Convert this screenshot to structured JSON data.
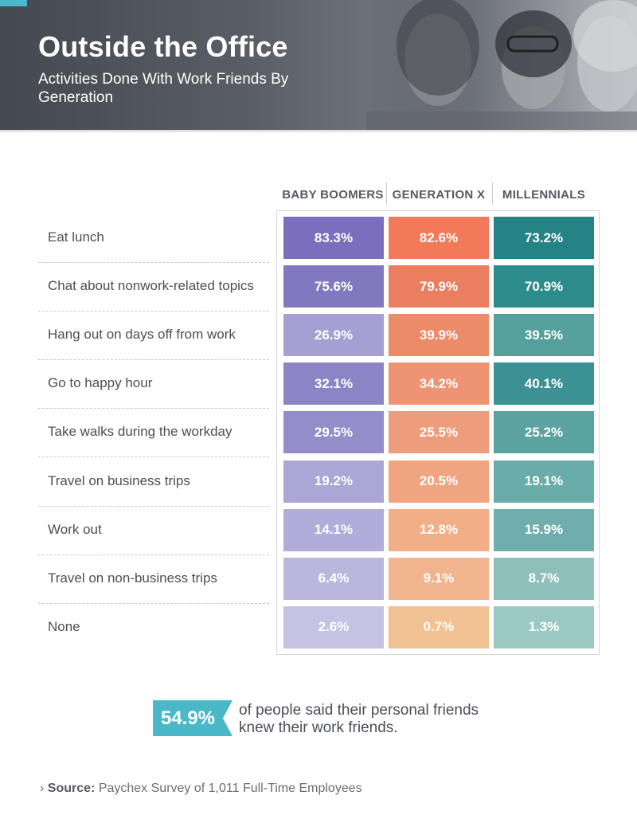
{
  "header": {
    "title": "Outside the Office",
    "subtitle": "Activities Done With Work Friends By Generation"
  },
  "chart_data": {
    "type": "table",
    "columns": [
      "BABY BOOMERS",
      "GENERATION X",
      "MILLENNIALS"
    ],
    "rows": [
      {
        "label": "Eat lunch",
        "values": [
          "83.3%",
          "82.6%",
          "73.2%"
        ]
      },
      {
        "label": "Chat about nonwork-related topics",
        "values": [
          "75.6%",
          "79.9%",
          "70.9%"
        ]
      },
      {
        "label": "Hang out on days off from work",
        "values": [
          "26.9%",
          "39.9%",
          "39.5%"
        ]
      },
      {
        "label": "Go to happy hour",
        "values": [
          "32.1%",
          "34.2%",
          "40.1%"
        ]
      },
      {
        "label": "Take walks during the workday",
        "values": [
          "29.5%",
          "25.5%",
          "25.2%"
        ]
      },
      {
        "label": "Travel on business trips",
        "values": [
          "19.2%",
          "20.5%",
          "19.1%"
        ]
      },
      {
        "label": "Work out",
        "values": [
          "14.1%",
          "12.8%",
          "15.9%"
        ]
      },
      {
        "label": "Travel on non-business trips",
        "values": [
          "6.4%",
          "9.1%",
          "8.7%"
        ]
      },
      {
        "label": "None",
        "values": [
          "2.6%",
          "0.7%",
          "1.3%"
        ]
      }
    ],
    "cell_colors": [
      [
        "#7b6fbd",
        "#f27a5b",
        "#268385"
      ],
      [
        "#8278c0",
        "#ea7e5e",
        "#2d8b8c"
      ],
      [
        "#a59fd3",
        "#ec8b68",
        "#559f9c"
      ],
      [
        "#8d84c5",
        "#ef9472",
        "#3b9193"
      ],
      [
        "#948dca",
        "#ee9d7c",
        "#5aa3a0"
      ],
      [
        "#aba6d6",
        "#f0a580",
        "#6aaca9"
      ],
      [
        "#b1acd9",
        "#f2ae87",
        "#6faeac"
      ],
      [
        "#bab6de",
        "#f2b48e",
        "#8fbfbb"
      ],
      [
        "#c5c2e3",
        "#f2c193",
        "#9cc8c3"
      ]
    ]
  },
  "callout": {
    "value": "54.9%",
    "text": "of people said their personal friends knew their work friends.",
    "color": "#4bb8c9"
  },
  "source": {
    "label": "Source:",
    "text": "Paychex Survey of 1,011 Full-Time Employees"
  }
}
